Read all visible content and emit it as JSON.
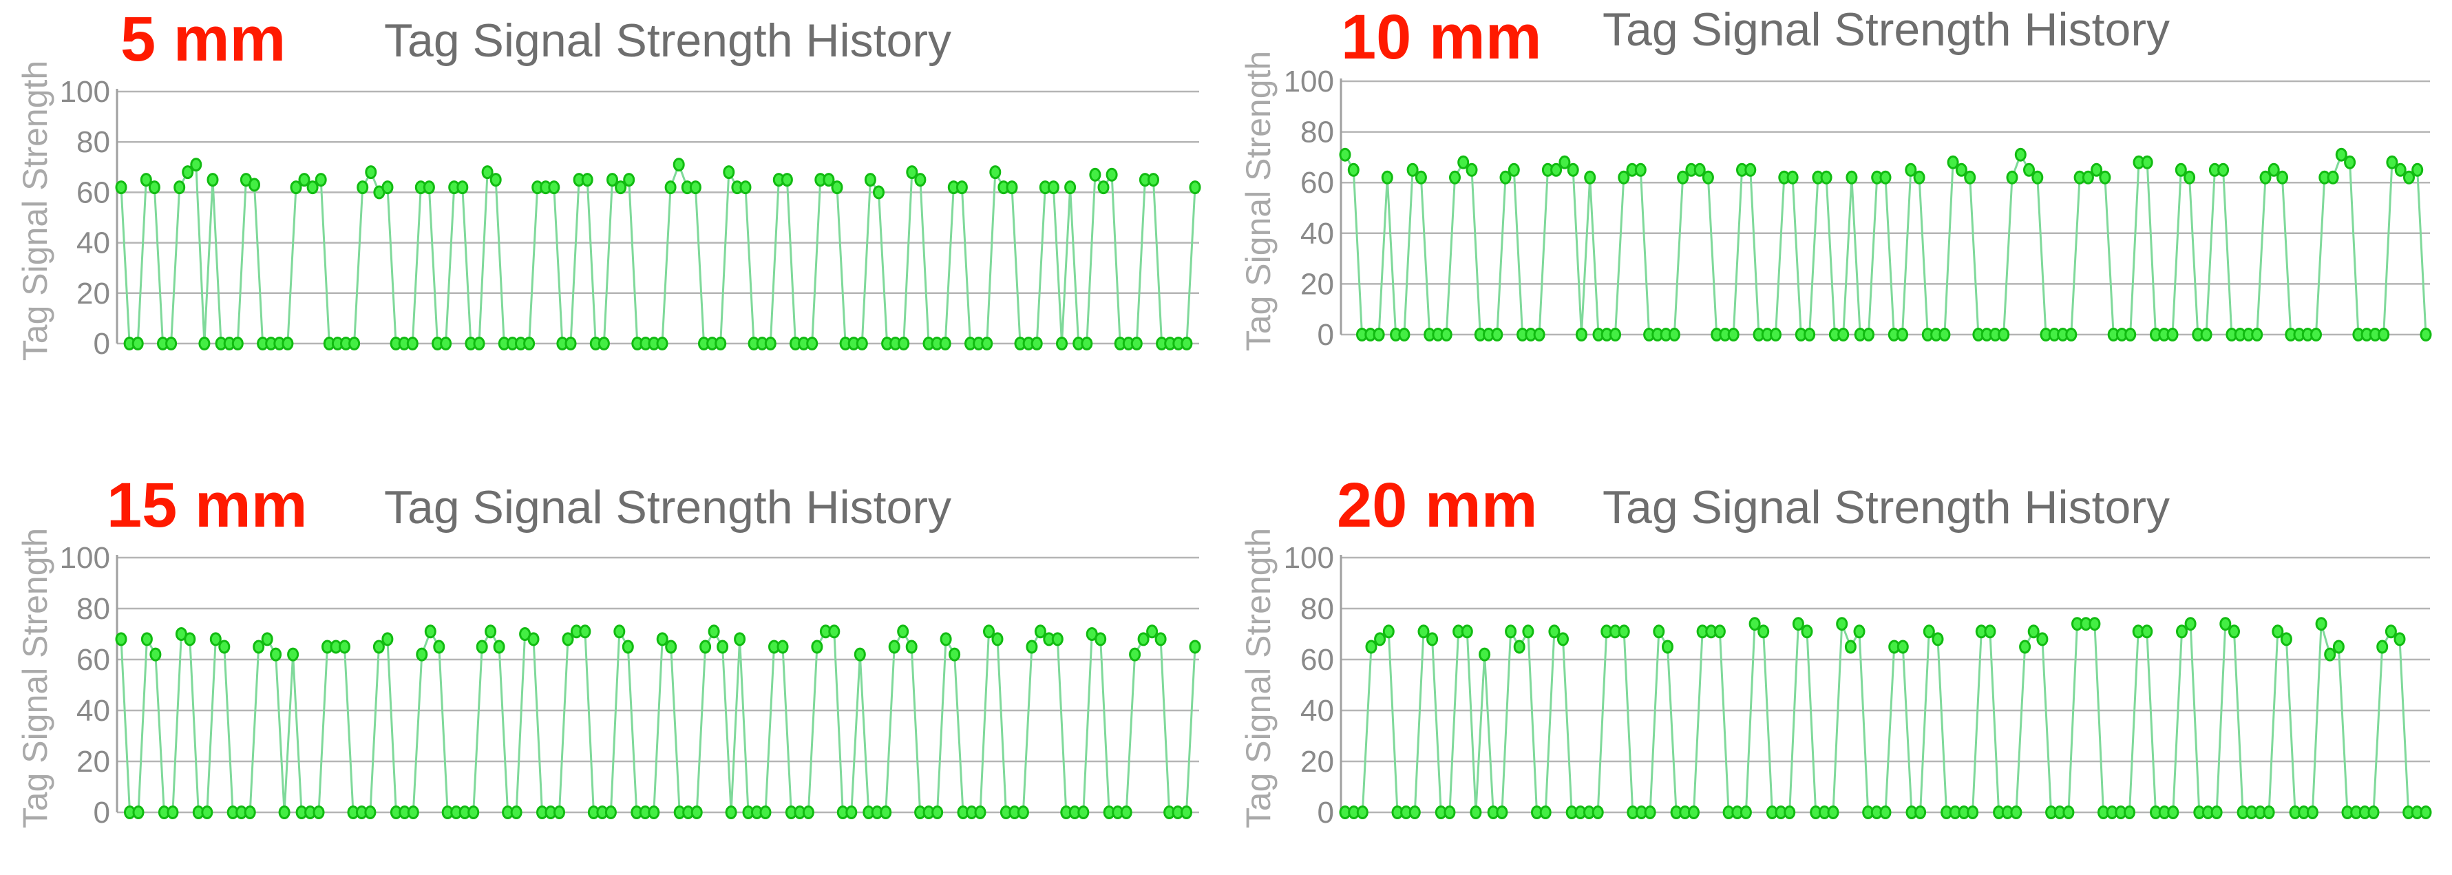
{
  "colors": {
    "label": "#ff1a00",
    "title": "#6e6e6e",
    "line": "#7fd99a",
    "point_fill": "#44ee44",
    "point_stroke": "#11bb11",
    "grid": "#b5b5b5"
  },
  "chart_data": [
    {
      "type": "line",
      "label": "5 mm",
      "title": "Tag Signal Strength History",
      "ylabel": "Tag Signal Strength",
      "xlabel": "",
      "ylim": [
        0,
        100
      ],
      "yticks": [
        0,
        20,
        40,
        60,
        80,
        100
      ],
      "grid": true,
      "values": [
        62,
        0,
        0,
        65,
        62,
        0,
        0,
        62,
        68,
        71,
        0,
        65,
        0,
        0,
        0,
        65,
        63,
        0,
        0,
        0,
        0,
        62,
        65,
        62,
        65,
        0,
        0,
        0,
        0,
        62,
        68,
        60,
        62,
        0,
        0,
        0,
        62,
        62,
        0,
        0,
        62,
        62,
        0,
        0,
        68,
        65,
        0,
        0,
        0,
        0,
        62,
        62,
        62,
        0,
        0,
        65,
        65,
        0,
        0,
        65,
        62,
        65,
        0,
        0,
        0,
        0,
        62,
        71,
        62,
        62,
        0,
        0,
        0,
        68,
        62,
        62,
        0,
        0,
        0,
        65,
        65,
        0,
        0,
        0,
        65,
        65,
        62,
        0,
        0,
        0,
        65,
        60,
        0,
        0,
        0,
        68,
        65,
        0,
        0,
        0,
        62,
        62,
        0,
        0,
        0,
        68,
        62,
        62,
        0,
        0,
        0,
        62,
        62,
        0,
        62,
        0,
        0,
        67,
        62,
        67,
        0,
        0,
        0,
        65,
        65,
        0,
        0,
        0,
        0,
        62
      ]
    },
    {
      "type": "line",
      "label": "10 mm",
      "title": "Tag Signal Strength History",
      "ylabel": "Tag Signal Strength",
      "xlabel": "",
      "ylim": [
        0,
        100
      ],
      "yticks": [
        0,
        20,
        40,
        60,
        80,
        100
      ],
      "grid": true,
      "values": [
        71,
        65,
        0,
        0,
        0,
        62,
        0,
        0,
        65,
        62,
        0,
        0,
        0,
        62,
        68,
        65,
        0,
        0,
        0,
        62,
        65,
        0,
        0,
        0,
        65,
        65,
        68,
        65,
        0,
        62,
        0,
        0,
        0,
        62,
        65,
        65,
        0,
        0,
        0,
        0,
        62,
        65,
        65,
        62,
        0,
        0,
        0,
        65,
        65,
        0,
        0,
        0,
        62,
        62,
        0,
        0,
        62,
        62,
        0,
        0,
        62,
        0,
        0,
        62,
        62,
        0,
        0,
        65,
        62,
        0,
        0,
        0,
        68,
        65,
        62,
        0,
        0,
        0,
        0,
        62,
        71,
        65,
        62,
        0,
        0,
        0,
        0,
        62,
        62,
        65,
        62,
        0,
        0,
        0,
        68,
        68,
        0,
        0,
        0,
        65,
        62,
        0,
        0,
        65,
        65,
        0,
        0,
        0,
        0,
        62,
        65,
        62,
        0,
        0,
        0,
        0,
        62,
        62,
        71,
        68,
        0,
        0,
        0,
        0,
        68,
        65,
        62,
        65,
        0
      ]
    },
    {
      "type": "line",
      "label": "15 mm",
      "title": "Tag Signal Strength History",
      "ylabel": "Tag Signal Strength",
      "xlabel": "",
      "ylim": [
        0,
        100
      ],
      "yticks": [
        0,
        20,
        40,
        60,
        80,
        100
      ],
      "grid": true,
      "values": [
        68,
        0,
        0,
        68,
        62,
        0,
        0,
        70,
        68,
        0,
        0,
        68,
        65,
        0,
        0,
        0,
        65,
        68,
        62,
        0,
        62,
        0,
        0,
        0,
        65,
        65,
        65,
        0,
        0,
        0,
        65,
        68,
        0,
        0,
        0,
        62,
        71,
        65,
        0,
        0,
        0,
        0,
        65,
        71,
        65,
        0,
        0,
        70,
        68,
        0,
        0,
        0,
        68,
        71,
        71,
        0,
        0,
        0,
        71,
        65,
        0,
        0,
        0,
        68,
        65,
        0,
        0,
        0,
        65,
        71,
        65,
        0,
        68,
        0,
        0,
        0,
        65,
        65,
        0,
        0,
        0,
        65,
        71,
        71,
        0,
        0,
        62,
        0,
        0,
        0,
        65,
        71,
        65,
        0,
        0,
        0,
        68,
        62,
        0,
        0,
        0,
        71,
        68,
        0,
        0,
        0,
        65,
        71,
        68,
        68,
        0,
        0,
        0,
        70,
        68,
        0,
        0,
        0,
        62,
        68,
        71,
        68,
        0,
        0,
        0,
        65
      ]
    },
    {
      "type": "line",
      "label": "20 mm",
      "title": "Tag Signal Strength History",
      "ylabel": "Tag Signal Strength",
      "xlabel": "",
      "ylim": [
        0,
        100
      ],
      "yticks": [
        0,
        20,
        40,
        60,
        80,
        100
      ],
      "grid": true,
      "values": [
        0,
        0,
        0,
        65,
        68,
        71,
        0,
        0,
        0,
        71,
        68,
        0,
        0,
        71,
        71,
        0,
        62,
        0,
        0,
        71,
        65,
        71,
        0,
        0,
        71,
        68,
        0,
        0,
        0,
        0,
        71,
        71,
        71,
        0,
        0,
        0,
        71,
        65,
        0,
        0,
        0,
        71,
        71,
        71,
        0,
        0,
        0,
        74,
        71,
        0,
        0,
        0,
        74,
        71,
        0,
        0,
        0,
        74,
        65,
        71,
        0,
        0,
        0,
        65,
        65,
        0,
        0,
        71,
        68,
        0,
        0,
        0,
        0,
        71,
        71,
        0,
        0,
        0,
        65,
        71,
        68,
        0,
        0,
        0,
        74,
        74,
        74,
        0,
        0,
        0,
        0,
        71,
        71,
        0,
        0,
        0,
        71,
        74,
        0,
        0,
        0,
        74,
        71,
        0,
        0,
        0,
        0,
        71,
        68,
        0,
        0,
        0,
        74,
        62,
        65,
        0,
        0,
        0,
        0,
        65,
        71,
        68,
        0,
        0,
        0
      ]
    }
  ]
}
